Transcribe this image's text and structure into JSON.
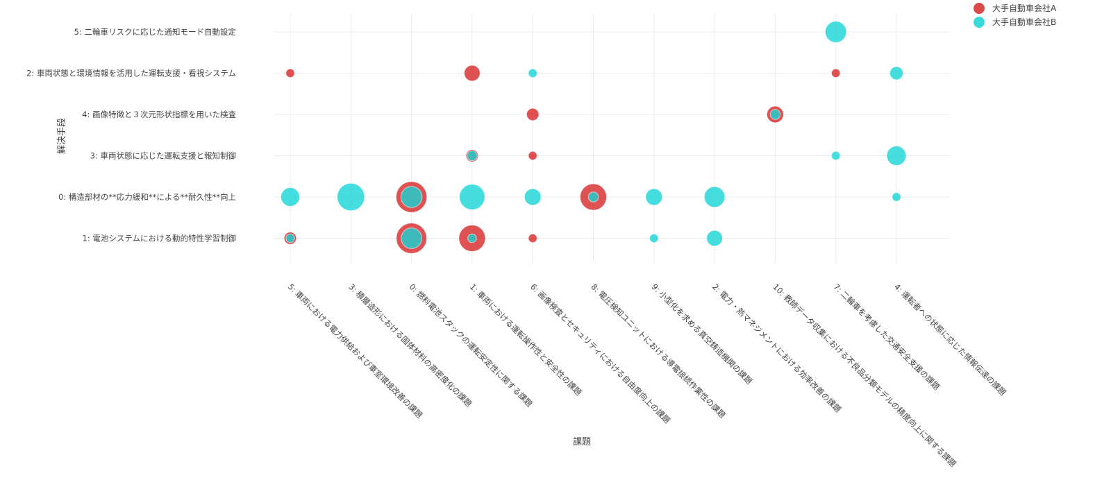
{
  "chart_data": {
    "type": "scatter",
    "xlabel": "課題",
    "ylabel": "解決手段",
    "x_categories": [
      "5: 車両における電力供給および車室環境改善の課題",
      "3: 積層造形における固体材料の高密度化の課題",
      "0: 燃料電池スタックの運転安定性に関する課題",
      "1: 車両における運転操作性と安全性の課題",
      "6: 画像検査とセキュリティにおける自由度向上の課題",
      "8: 電圧検知ユニットにおける導電接続作業性の課題",
      "9: 小型化を求める真空鋳造機関の課題",
      "2: 電力・熱マネジメントにおける効率改善の課題",
      "10: 教師データ収集における不良品分類モデルの精度向上に関する課題",
      "7: 二輪車を考慮した交通安全支援の課題",
      "4: 運転者への状態に応じた情報伝達の課題"
    ],
    "y_categories": [
      "5: 二輪車リスクに応じた通知モード自動設定",
      "2: 車両状態と環境情報を活用した運転支援・看視システム",
      "4: 画像特徴と３次元形状指標を用いた検査",
      "3: 車両状態に応じた運転支援と報知制御",
      "0: 構造部材の**応力緩和**による**耐久性**向上",
      "1: 電池システムにおける動的特性学習制御"
    ],
    "series": [
      {
        "name": "大手自動車会社A",
        "color": "#d62728",
        "points": [
          {
            "x": 0,
            "y": 1,
            "size": 3
          },
          {
            "x": 3,
            "y": 1,
            "size": 10
          },
          {
            "x": 4,
            "y": 2,
            "size": 6
          },
          {
            "x": 8,
            "y": 2,
            "size": 11
          },
          {
            "x": 3,
            "y": 3,
            "size": 6
          },
          {
            "x": 4,
            "y": 3,
            "size": 3
          },
          {
            "x": 2,
            "y": 4,
            "size": 38
          },
          {
            "x": 5,
            "y": 4,
            "size": 28
          },
          {
            "x": 0,
            "y": 5,
            "size": 6
          },
          {
            "x": 2,
            "y": 5,
            "size": 37
          },
          {
            "x": 3,
            "y": 5,
            "size": 28
          },
          {
            "x": 4,
            "y": 5,
            "size": 3
          },
          {
            "x": 9,
            "y": 1,
            "size": 3
          }
        ]
      },
      {
        "name": "大手自動車会社B",
        "color": "#17d4d6",
        "points": [
          {
            "x": 9,
            "y": 0,
            "size": 18
          },
          {
            "x": 4,
            "y": 1,
            "size": 3
          },
          {
            "x": 10,
            "y": 1,
            "size": 7
          },
          {
            "x": 8,
            "y": 2,
            "size": 4
          },
          {
            "x": 3,
            "y": 3,
            "size": 4
          },
          {
            "x": 9,
            "y": 3,
            "size": 3
          },
          {
            "x": 10,
            "y": 3,
            "size": 15
          },
          {
            "x": 0,
            "y": 4,
            "size": 14
          },
          {
            "x": 1,
            "y": 4,
            "size": 30
          },
          {
            "x": 2,
            "y": 4,
            "size": 18
          },
          {
            "x": 3,
            "y": 4,
            "size": 26
          },
          {
            "x": 4,
            "y": 4,
            "size": 11
          },
          {
            "x": 5,
            "y": 4,
            "size": 4
          },
          {
            "x": 6,
            "y": 4,
            "size": 11
          },
          {
            "x": 7,
            "y": 4,
            "size": 17
          },
          {
            "x": 10,
            "y": 4,
            "size": 3
          },
          {
            "x": 0,
            "y": 5,
            "size": 3
          },
          {
            "x": 2,
            "y": 5,
            "size": 17
          },
          {
            "x": 3,
            "y": 5,
            "size": 3
          },
          {
            "x": 6,
            "y": 5,
            "size": 3
          },
          {
            "x": 7,
            "y": 5,
            "size": 10
          }
        ]
      }
    ],
    "grid": true,
    "legend_position": "top-right"
  }
}
